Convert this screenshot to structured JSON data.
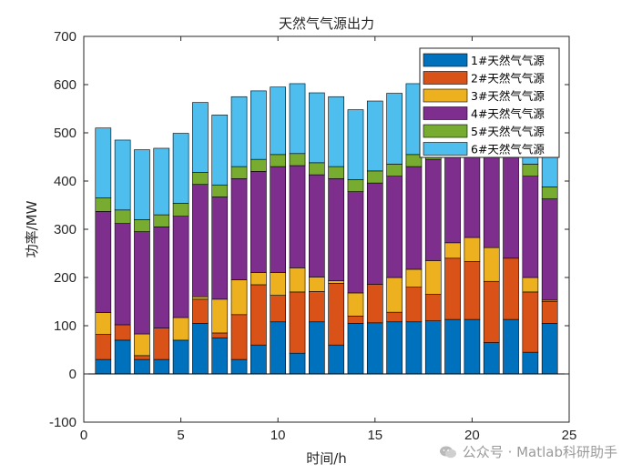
{
  "chart_data": {
    "type": "bar",
    "stacked": true,
    "title": "天然气气源出力",
    "xlabel": "时间/h",
    "ylabel": "功率/MW",
    "xlim": [
      0,
      25
    ],
    "ylim": [
      -100,
      700
    ],
    "xticks": [
      "0",
      "5",
      "10",
      "15",
      "20",
      "25"
    ],
    "yticks": [
      "-100",
      "0",
      "100",
      "200",
      "300",
      "400",
      "500",
      "600",
      "700"
    ],
    "categories": [
      1,
      2,
      3,
      4,
      5,
      6,
      7,
      8,
      9,
      10,
      11,
      12,
      13,
      14,
      15,
      16,
      17,
      18,
      19,
      20,
      21,
      22,
      23,
      24
    ],
    "legend_position": "top-right",
    "series": [
      {
        "name": "1#天然气气源",
        "color": "#0072BD",
        "values": [
          30,
          70,
          30,
          30,
          70,
          105,
          75,
          30,
          60,
          108,
          43,
          108,
          60,
          105,
          106,
          108,
          108,
          110,
          113,
          113,
          65,
          113,
          45,
          105
        ]
      },
      {
        "name": "2#天然气气源",
        "color": "#D95319",
        "values": [
          52,
          32,
          8,
          65,
          0,
          50,
          10,
          93,
          125,
          55,
          127,
          63,
          128,
          15,
          80,
          20,
          72,
          55,
          127,
          120,
          127,
          127,
          125,
          45
        ]
      },
      {
        "name": "3#天然气气源",
        "color": "#EDB120",
        "values": [
          45,
          0,
          45,
          0,
          47,
          5,
          70,
          72,
          25,
          47,
          50,
          30,
          5,
          48,
          0,
          72,
          37,
          70,
          32,
          50,
          70,
          0,
          30,
          3
        ]
      },
      {
        "name": "4#天然气气源",
        "color": "#7E2F8E",
        "values": [
          210,
          210,
          212,
          210,
          210,
          233,
          212,
          210,
          210,
          220,
          212,
          212,
          212,
          210,
          210,
          210,
          213,
          210,
          210,
          210,
          210,
          210,
          210,
          210
        ]
      },
      {
        "name": "5#天然气气源",
        "color": "#77AC30",
        "values": [
          28,
          28,
          25,
          25,
          27,
          25,
          25,
          25,
          25,
          25,
          25,
          25,
          25,
          25,
          25,
          25,
          25,
          25,
          25,
          25,
          25,
          25,
          25,
          25
        ]
      },
      {
        "name": "6#天然气气源",
        "color": "#4DBEEE",
        "values": [
          145,
          145,
          145,
          138,
          145,
          145,
          145,
          145,
          142,
          140,
          145,
          145,
          145,
          145,
          145,
          147,
          147,
          147,
          147,
          147,
          147,
          147,
          147,
          147
        ]
      }
    ]
  },
  "watermark": {
    "text": "公众号 · Matlab科研助手"
  }
}
